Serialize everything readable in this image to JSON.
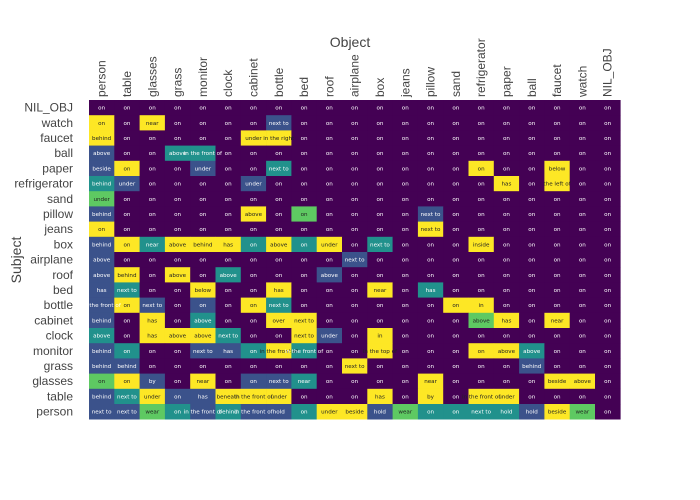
{
  "chart_data": {
    "type": "heatmap",
    "title": "",
    "xlabel": "Object",
    "ylabel": "Subject",
    "x_categories": [
      "person",
      "table",
      "glasses",
      "grass",
      "monitor",
      "clock",
      "cabinet",
      "bottle",
      "bed",
      "roof",
      "airplane",
      "box",
      "jeans",
      "pillow",
      "sand",
      "refrigerator",
      "paper",
      "ball",
      "faucet",
      "watch",
      "NIL_OBJ"
    ],
    "y_categories": [
      "NIL_OBJ",
      "watch",
      "faucet",
      "ball",
      "paper",
      "refrigerator",
      "sand",
      "pillow",
      "jeans",
      "box",
      "airplane",
      "roof",
      "bed",
      "bottle",
      "cabinet",
      "clock",
      "monitor",
      "grass",
      "glasses",
      "table",
      "person"
    ],
    "colorscale": [
      "#440154",
      "#3b528b",
      "#21918c",
      "#5ec962",
      "#fde725"
    ],
    "rows": [
      {
        "subject": "NIL_OBJ",
        "labels": [
          "on",
          "on",
          "on",
          "on",
          "on",
          "on",
          "on",
          "on",
          "on",
          "on",
          "on",
          "on",
          "on",
          "on",
          "on",
          "on",
          "on",
          "on",
          "on",
          "on",
          "on"
        ],
        "levels": [
          0,
          0,
          0,
          0,
          0,
          0,
          0,
          0,
          0,
          0,
          0,
          0,
          0,
          0,
          0,
          0,
          0,
          0,
          0,
          0,
          0
        ]
      },
      {
        "subject": "watch",
        "labels": [
          "on",
          "on",
          "near",
          "on",
          "on",
          "on",
          "on",
          "next to",
          "on",
          "on",
          "on",
          "on",
          "on",
          "on",
          "on",
          "on",
          "on",
          "on",
          "on",
          "on",
          "on"
        ],
        "levels": [
          4,
          0,
          4,
          0,
          0,
          0,
          0,
          1,
          0,
          0,
          0,
          0,
          0,
          0,
          0,
          0,
          0,
          0,
          0,
          0,
          0
        ]
      },
      {
        "subject": "faucet",
        "labels": [
          "behind",
          "on",
          "on",
          "on",
          "on",
          "on",
          "under",
          "in the right",
          "on",
          "on",
          "on",
          "on",
          "on",
          "on",
          "on",
          "on",
          "on",
          "on",
          "on",
          "on",
          "on"
        ],
        "levels": [
          4,
          0,
          0,
          0,
          0,
          0,
          4,
          4,
          0,
          0,
          0,
          0,
          0,
          0,
          0,
          0,
          0,
          0,
          0,
          0,
          0
        ]
      },
      {
        "subject": "ball",
        "labels": [
          "above",
          "on",
          "on",
          "above",
          "in the front of",
          "on",
          "on",
          "on",
          "on",
          "on",
          "on",
          "on",
          "on",
          "on",
          "on",
          "on",
          "on",
          "on",
          "on",
          "on",
          "on"
        ],
        "levels": [
          1,
          0,
          0,
          2,
          2,
          0,
          0,
          0,
          0,
          0,
          0,
          0,
          0,
          0,
          0,
          0,
          0,
          0,
          0,
          0,
          0
        ]
      },
      {
        "subject": "paper",
        "labels": [
          "beside",
          "on",
          "on",
          "on",
          "under",
          "on",
          "on",
          "next to",
          "on",
          "on",
          "on",
          "on",
          "on",
          "on",
          "on",
          "on",
          "on",
          "on",
          "below",
          "on",
          "on"
        ],
        "levels": [
          1,
          4,
          0,
          0,
          1,
          0,
          0,
          2,
          0,
          0,
          0,
          0,
          0,
          0,
          0,
          4,
          0,
          0,
          4,
          0,
          0
        ]
      },
      {
        "subject": "refrigerator",
        "labels": [
          "behind",
          "under",
          "on",
          "on",
          "on",
          "on",
          "under",
          "on",
          "on",
          "on",
          "on",
          "on",
          "on",
          "on",
          "on",
          "on",
          "has",
          "on",
          "the left of",
          "on",
          "on"
        ],
        "levels": [
          2,
          1,
          0,
          0,
          0,
          0,
          1,
          0,
          0,
          0,
          0,
          0,
          0,
          0,
          0,
          0,
          4,
          0,
          4,
          0,
          0
        ]
      },
      {
        "subject": "sand",
        "labels": [
          "under",
          "on",
          "on",
          "on",
          "on",
          "on",
          "on",
          "on",
          "on",
          "on",
          "on",
          "on",
          "on",
          "on",
          "on",
          "on",
          "on",
          "on",
          "on",
          "on",
          "on"
        ],
        "levels": [
          3,
          0,
          0,
          0,
          0,
          0,
          0,
          0,
          0,
          0,
          0,
          0,
          0,
          0,
          0,
          0,
          0,
          0,
          0,
          0,
          0
        ]
      },
      {
        "subject": "pillow",
        "labels": [
          "behind",
          "on",
          "on",
          "on",
          "on",
          "on",
          "above",
          "on",
          "on",
          "on",
          "on",
          "on",
          "on",
          "next to",
          "on",
          "on",
          "on",
          "on",
          "on",
          "on",
          "on"
        ],
        "levels": [
          1,
          0,
          0,
          0,
          0,
          0,
          4,
          0,
          3,
          0,
          0,
          0,
          0,
          1,
          0,
          0,
          0,
          0,
          0,
          0,
          0
        ]
      },
      {
        "subject": "jeans",
        "labels": [
          "on",
          "on",
          "on",
          "on",
          "on",
          "on",
          "on",
          "on",
          "on",
          "on",
          "on",
          "on",
          "on",
          "next to",
          "on",
          "on",
          "on",
          "on",
          "on",
          "on",
          "on"
        ],
        "levels": [
          4,
          0,
          0,
          0,
          0,
          0,
          0,
          0,
          0,
          0,
          0,
          0,
          0,
          4,
          0,
          0,
          0,
          0,
          0,
          0,
          0
        ]
      },
      {
        "subject": "box",
        "labels": [
          "behind",
          "on",
          "near",
          "above",
          "behind",
          "has",
          "on",
          "above",
          "on",
          "under",
          "on",
          "next to",
          "on",
          "on",
          "on",
          "inside",
          "on",
          "on",
          "on",
          "on",
          "on"
        ],
        "levels": [
          1,
          4,
          2,
          4,
          4,
          4,
          2,
          4,
          2,
          4,
          0,
          2,
          0,
          0,
          0,
          4,
          0,
          0,
          0,
          0,
          0
        ]
      },
      {
        "subject": "airplane",
        "labels": [
          "above",
          "on",
          "on",
          "on",
          "on",
          "on",
          "on",
          "on",
          "on",
          "on",
          "next to",
          "on",
          "on",
          "on",
          "on",
          "on",
          "on",
          "on",
          "on",
          "on",
          "on"
        ],
        "levels": [
          1,
          0,
          0,
          0,
          0,
          0,
          0,
          0,
          0,
          0,
          1,
          0,
          0,
          0,
          0,
          0,
          0,
          0,
          0,
          0,
          0
        ]
      },
      {
        "subject": "roof",
        "labels": [
          "above",
          "behind",
          "on",
          "above",
          "on",
          "above",
          "on",
          "on",
          "on",
          "above",
          "on",
          "on",
          "on",
          "on",
          "on",
          "on",
          "on",
          "on",
          "on",
          "on",
          "on"
        ],
        "levels": [
          1,
          4,
          0,
          4,
          0,
          2,
          0,
          0,
          0,
          1,
          0,
          0,
          0,
          0,
          0,
          0,
          0,
          0,
          0,
          0,
          0
        ]
      },
      {
        "subject": "bed",
        "labels": [
          "has",
          "next to",
          "on",
          "on",
          "below",
          "on",
          "on",
          "has",
          "on",
          "on",
          "on",
          "near",
          "on",
          "has",
          "on",
          "on",
          "on",
          "on",
          "on",
          "on",
          "on"
        ],
        "levels": [
          1,
          2,
          0,
          0,
          4,
          0,
          0,
          4,
          0,
          0,
          0,
          4,
          0,
          2,
          0,
          0,
          0,
          0,
          0,
          0,
          0
        ]
      },
      {
        "subject": "bottle",
        "labels": [
          "in the front of",
          "on",
          "next to",
          "on",
          "on",
          "on",
          "on",
          "next to",
          "on",
          "on",
          "on",
          "on",
          "on",
          "on",
          "on",
          "in",
          "on",
          "on",
          "on",
          "on",
          "on"
        ],
        "levels": [
          1,
          4,
          1,
          0,
          1,
          0,
          4,
          2,
          0,
          0,
          0,
          0,
          0,
          0,
          4,
          4,
          0,
          0,
          0,
          0,
          0
        ]
      },
      {
        "subject": "cabinet",
        "labels": [
          "behind",
          "on",
          "has",
          "on",
          "above",
          "on",
          "on",
          "over",
          "next to",
          "on",
          "on",
          "on",
          "on",
          "on",
          "on",
          "above",
          "has",
          "on",
          "near",
          "on",
          "on"
        ],
        "levels": [
          1,
          0,
          4,
          0,
          2,
          0,
          0,
          4,
          4,
          0,
          0,
          0,
          0,
          0,
          0,
          3,
          4,
          0,
          4,
          0,
          0
        ]
      },
      {
        "subject": "clock",
        "labels": [
          "above",
          "on",
          "has",
          "above",
          "above",
          "next to",
          "on",
          "on",
          "next to",
          "under",
          "on",
          "in",
          "on",
          "on",
          "on",
          "on",
          "on",
          "on",
          "on",
          "on",
          "on"
        ],
        "levels": [
          2,
          0,
          4,
          4,
          4,
          2,
          0,
          0,
          4,
          1,
          0,
          4,
          0,
          0,
          0,
          0,
          0,
          0,
          0,
          0,
          0
        ]
      },
      {
        "subject": "monitor",
        "labels": [
          "behind",
          "on",
          "on",
          "on",
          "next to",
          "has",
          "on",
          "in the front of",
          "in the front of",
          "on",
          "on",
          "in the top of",
          "on",
          "on",
          "on",
          "on",
          "above",
          "above",
          "on",
          "on",
          "on"
        ],
        "levels": [
          1,
          2,
          0,
          0,
          1,
          1,
          2,
          4,
          2,
          0,
          0,
          4,
          0,
          0,
          0,
          4,
          4,
          2,
          0,
          0,
          0
        ]
      },
      {
        "subject": "grass",
        "labels": [
          "behind",
          "behind",
          "on",
          "on",
          "on",
          "on",
          "on",
          "on",
          "on",
          "on",
          "next to",
          "on",
          "on",
          "on",
          "on",
          "on",
          "on",
          "behind",
          "on",
          "on",
          "on"
        ],
        "levels": [
          1,
          1,
          0,
          0,
          0,
          0,
          0,
          0,
          0,
          0,
          4,
          0,
          0,
          0,
          0,
          0,
          0,
          1,
          0,
          0,
          0
        ]
      },
      {
        "subject": "glasses",
        "labels": [
          "on",
          "on",
          "by",
          "on",
          "near",
          "on",
          "on",
          "next to",
          "near",
          "on",
          "on",
          "on",
          "on",
          "near",
          "on",
          "on",
          "on",
          "on",
          "beside",
          "above",
          "on"
        ],
        "levels": [
          3,
          4,
          1,
          0,
          4,
          0,
          1,
          1,
          2,
          0,
          0,
          0,
          0,
          4,
          0,
          0,
          0,
          0,
          4,
          4,
          0
        ]
      },
      {
        "subject": "table",
        "labels": [
          "behind",
          "next to",
          "under",
          "on",
          "has",
          "beneath",
          "in the front of",
          "under",
          "on",
          "on",
          "on",
          "has",
          "on",
          "by",
          "on",
          "in the front of",
          "under",
          "on",
          "on",
          "on",
          "on"
        ],
        "levels": [
          1,
          2,
          4,
          1,
          1,
          4,
          4,
          4,
          0,
          0,
          0,
          4,
          0,
          4,
          0,
          4,
          4,
          0,
          0,
          0,
          0
        ]
      },
      {
        "subject": "person",
        "labels": [
          "next to",
          "next to",
          "wear",
          "on",
          "in the front of",
          "behind",
          "in the front of",
          "hold",
          "on",
          "under",
          "beside",
          "hold",
          "wear",
          "on",
          "on",
          "next to",
          "hold",
          "hold",
          "beside",
          "wear",
          "on"
        ],
        "levels": [
          1,
          1,
          3,
          2,
          1,
          2,
          1,
          1,
          2,
          4,
          4,
          1,
          3,
          2,
          2,
          2,
          2,
          1,
          4,
          3,
          0
        ]
      }
    ]
  }
}
